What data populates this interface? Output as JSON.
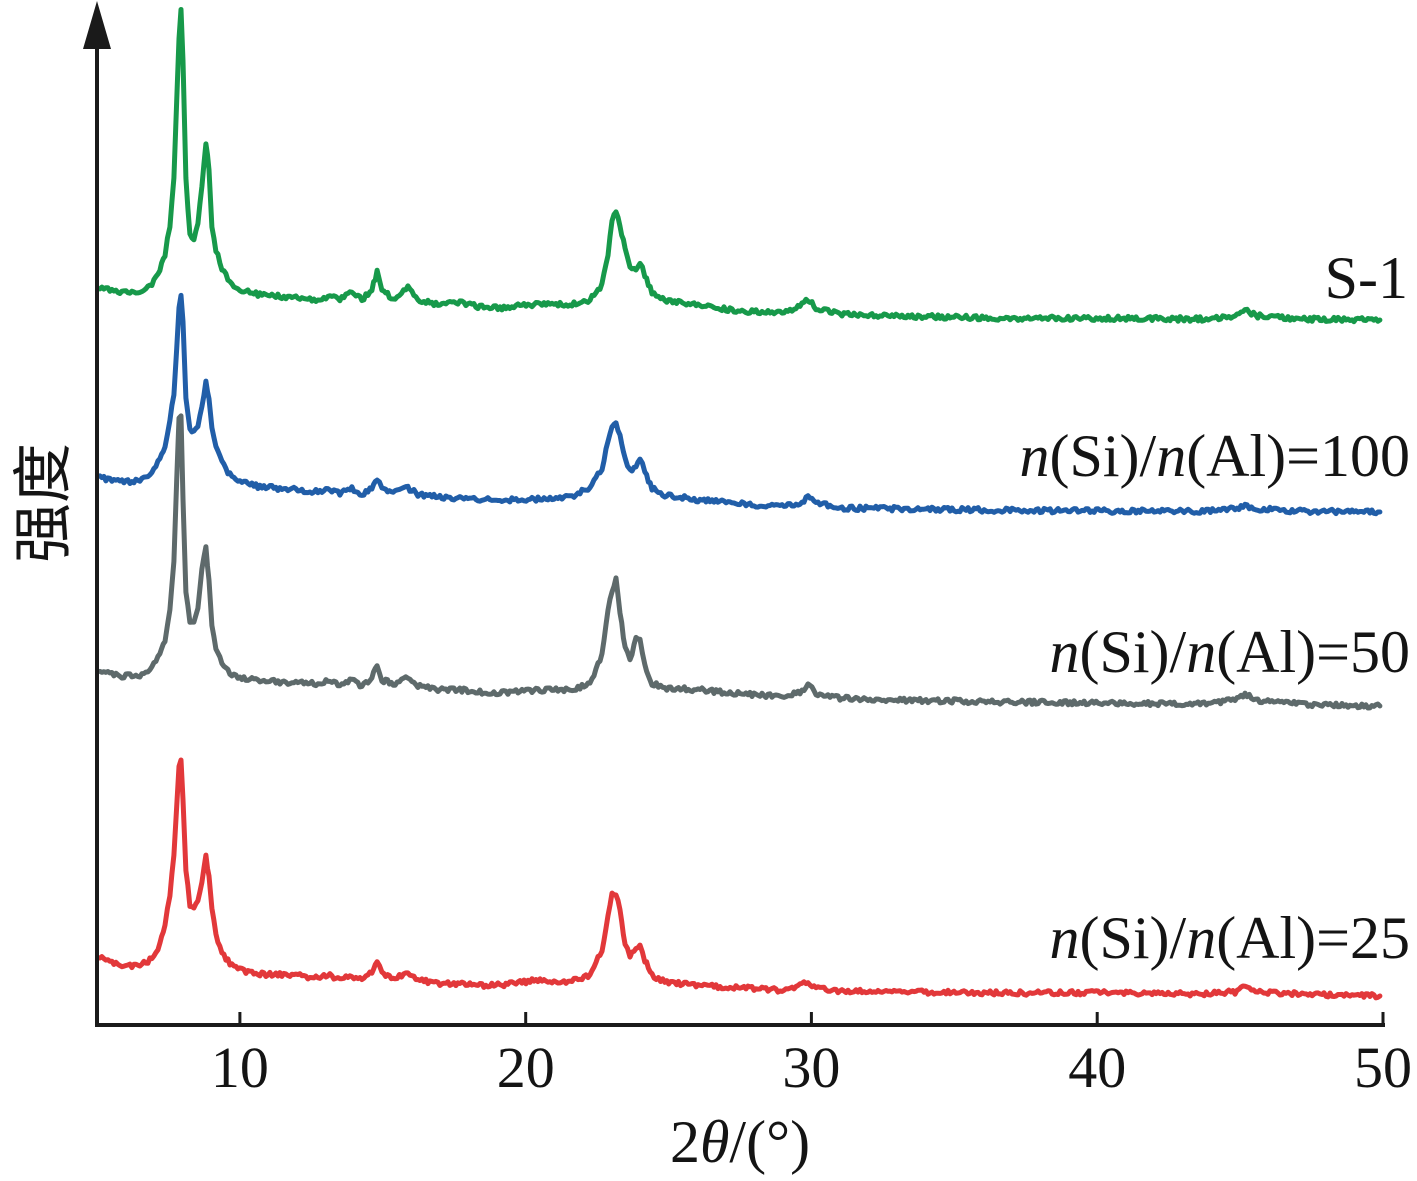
{
  "chart_data": {
    "type": "line",
    "xlabel": "2θ/(°)",
    "ylabel": "强度",
    "xlim": [
      5,
      50
    ],
    "xticks": [
      10,
      20,
      30,
      40,
      50
    ],
    "grid": false,
    "legend": "right",
    "x": [
      5.1,
      5.8,
      6.5,
      6.85,
      7.2,
      7.38,
      7.55,
      7.69,
      7.79,
      7.87,
      7.94,
      8.01,
      8.11,
      8.25,
      8.39,
      8.53,
      8.67,
      8.81,
      8.92,
      9.02,
      9.16,
      9.37,
      9.65,
      10.0,
      10.7,
      12.1,
      12.8,
      13.15,
      13.5,
      13.92,
      14.27,
      14.62,
      14.8,
      14.97,
      15.43,
      15.88,
      16.23,
      17.0,
      17.7,
      18.4,
      19.1,
      20.5,
      21.55,
      22.25,
      22.67,
      22.88,
      23.02,
      23.16,
      23.3,
      23.48,
      23.65,
      23.86,
      24.0,
      24.17,
      24.42,
      24.87,
      26.1,
      27.5,
      28.9,
      29.6,
      29.88,
      30.16,
      31.0,
      33.1,
      36.6,
      40.1,
      43.6,
      44.82,
      45.17,
      45.62,
      47.1,
      49.89
    ],
    "series": [
      {
        "name": "S-1",
        "color": "#17994a",
        "values": [
          10.3,
          9.0,
          9.0,
          10.6,
          16.1,
          21.0,
          30.6,
          45.2,
          71.0,
          90.3,
          100,
          83.9,
          45.2,
          27.4,
          26.5,
          30.6,
          43.5,
          57.1,
          48.4,
          30.6,
          22.6,
          16.8,
          11.9,
          9.7,
          8.1,
          7.1,
          6.5,
          7.7,
          6.5,
          9.0,
          6.5,
          9.7,
          15.5,
          9.7,
          6.5,
          10.3,
          6.5,
          4.8,
          5.8,
          4.2,
          3.9,
          5.2,
          4.8,
          6.5,
          11.3,
          21.0,
          32.3,
          34.8,
          30.6,
          22.6,
          16.8,
          16.8,
          18.7,
          14.5,
          8.7,
          6.5,
          4.8,
          2.9,
          2.6,
          4.2,
          6.5,
          3.9,
          1.9,
          1.3,
          0.6,
          0.6,
          0.3,
          1.3,
          3.2,
          1.3,
          0.3,
          0
        ]
      },
      {
        "name": "n(Si)/n(Al)=100",
        "color": "#215ea8",
        "values": [
          11.0,
          9.7,
          10.0,
          11.9,
          17.4,
          21.6,
          29.7,
          37.7,
          52.3,
          65.2,
          70.6,
          61.9,
          36.1,
          26.5,
          25.8,
          27.1,
          34.5,
          41.6,
          36.1,
          26.5,
          20.6,
          16.1,
          11.9,
          9.7,
          8.1,
          7.1,
          6.5,
          7.1,
          5.8,
          7.7,
          5.8,
          7.7,
          10.3,
          7.7,
          6.5,
          7.7,
          5.8,
          4.8,
          4.5,
          4.2,
          3.9,
          4.2,
          4.8,
          8.1,
          14.2,
          23.2,
          28.1,
          28.7,
          24.8,
          16.8,
          13.5,
          14.2,
          17.4,
          12.9,
          7.7,
          5.5,
          3.9,
          2.6,
          1.9,
          2.9,
          4.8,
          2.9,
          1.3,
          1.0,
          0.6,
          0.3,
          0.3,
          1.0,
          1.9,
          1.0,
          0.3,
          0
        ]
      },
      {
        "name": "n(Si)/n(Al)=50",
        "color": "#5e6a6b",
        "values": [
          11.0,
          9.7,
          10.0,
          11.6,
          16.5,
          21.3,
          31.0,
          47.1,
          72.9,
          92.3,
          93.9,
          66.5,
          37.4,
          27.7,
          27.1,
          31.6,
          43.9,
          51.0,
          40.6,
          26.1,
          18.7,
          14.2,
          10.6,
          9.0,
          8.1,
          7.4,
          7.1,
          8.4,
          6.5,
          8.4,
          6.5,
          9.0,
          13.5,
          8.4,
          7.1,
          9.4,
          6.5,
          5.2,
          5.2,
          4.5,
          4.2,
          5.2,
          5.2,
          7.1,
          16.5,
          31.6,
          36.8,
          40.6,
          30.3,
          18.7,
          14.8,
          21.9,
          21.3,
          13.2,
          7.4,
          5.8,
          5.2,
          3.9,
          3.2,
          4.5,
          6.8,
          4.2,
          2.6,
          1.9,
          1.3,
          1.0,
          0.6,
          1.9,
          3.9,
          1.9,
          0.6,
          0
        ]
      },
      {
        "name": "n(Si)/n(Al)=25",
        "color": "#e2383a",
        "values": [
          12.3,
          9.7,
          10.0,
          11.6,
          16.5,
          22.9,
          32.6,
          45.5,
          61.6,
          73.5,
          75.5,
          63.2,
          40.6,
          29.4,
          27.7,
          31.0,
          37.4,
          44.8,
          39.0,
          27.7,
          19.7,
          14.2,
          10.3,
          8.4,
          7.1,
          6.5,
          5.8,
          6.8,
          5.2,
          6.5,
          5.2,
          7.7,
          11.0,
          7.1,
          5.8,
          7.7,
          5.2,
          3.9,
          3.9,
          3.5,
          3.5,
          5.2,
          4.5,
          6.8,
          14.8,
          26.1,
          32.6,
          33.2,
          27.7,
          16.5,
          13.2,
          14.8,
          16.5,
          11.6,
          6.8,
          4.5,
          3.5,
          2.6,
          1.9,
          3.2,
          4.5,
          2.9,
          1.6,
          1.3,
          1.0,
          1.0,
          0.6,
          1.3,
          2.9,
          1.3,
          0.6,
          0
        ]
      }
    ]
  }
}
